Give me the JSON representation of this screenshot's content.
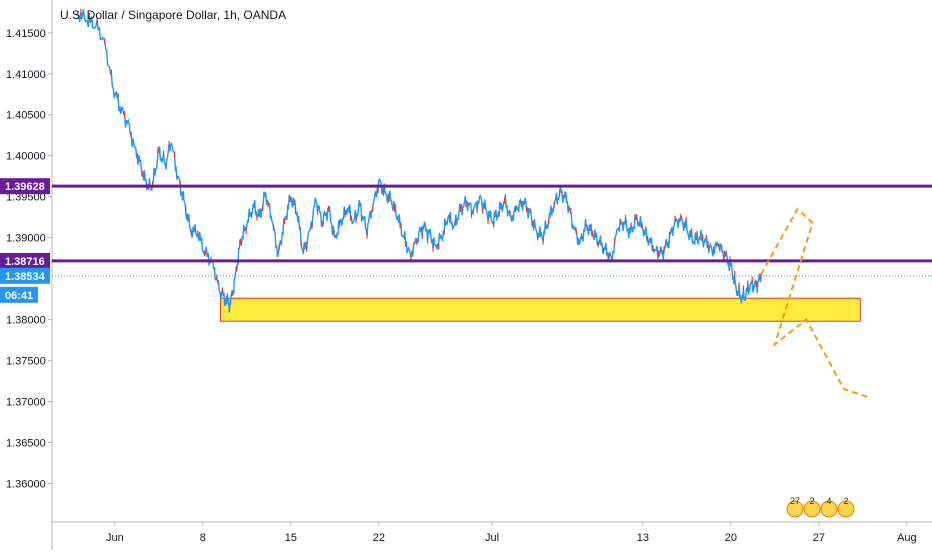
{
  "header": {
    "title": "U.S. Dollar / Singapore Dollar, 1h, OANDA"
  },
  "price_tags": {
    "res_upper": {
      "label": "1.39628",
      "color": "#6a1b9a"
    },
    "res_lower": {
      "label": "1.38716",
      "color": "#6a1b9a"
    },
    "last": {
      "label": "1.38534",
      "color": "#2196f3"
    },
    "countdown": {
      "label": "06:41",
      "color": "#2196f3"
    }
  },
  "events": {
    "labels": [
      "27",
      "2",
      "4",
      "2"
    ]
  },
  "chart_data": {
    "type": "candlestick",
    "title": "U.S. Dollar / Singapore Dollar, 1h, OANDA",
    "xlabel": "",
    "ylabel": "",
    "ylim": [
      1.3553,
      1.419
    ],
    "y_ticks": [
      1.415,
      1.41,
      1.405,
      1.4,
      1.395,
      1.39,
      1.38,
      1.375,
      1.37,
      1.365,
      1.36
    ],
    "y_tick_labels": [
      "1.41500",
      "1.41000",
      "1.40500",
      "1.40000",
      "1.39500",
      "1.39000",
      "1.38000",
      "1.37500",
      "1.37000",
      "1.36500",
      "1.36000"
    ],
    "x_ticks": [
      {
        "label": "Jun",
        "x": 28
      },
      {
        "label": "8",
        "x": 35
      },
      {
        "label": "15",
        "x": 42
      },
      {
        "label": "22",
        "x": 49
      },
      {
        "label": "Jul",
        "x": 58
      },
      {
        "label": "13",
        "x": 70
      },
      {
        "label": "20",
        "x": 77
      },
      {
        "label": "27",
        "x": 84
      },
      {
        "label": "Aug",
        "x": 91
      }
    ],
    "xlim": [
      23,
      93
    ],
    "price_path": [
      [
        25.0,
        1.4175
      ],
      [
        25.8,
        1.4165
      ],
      [
        26.5,
        1.4158
      ],
      [
        27.2,
        1.414
      ],
      [
        27.8,
        1.4085
      ],
      [
        28.4,
        1.406
      ],
      [
        29.0,
        1.404
      ],
      [
        29.6,
        1.401
      ],
      [
        30.1,
        1.3985
      ],
      [
        30.6,
        1.396
      ],
      [
        31.0,
        1.3965
      ],
      [
        31.5,
        1.4005
      ],
      [
        32.0,
        1.399
      ],
      [
        32.5,
        1.4015
      ],
      [
        33.0,
        1.3975
      ],
      [
        33.5,
        1.3945
      ],
      [
        34.0,
        1.391
      ],
      [
        34.6,
        1.3905
      ],
      [
        35.2,
        1.388
      ],
      [
        35.8,
        1.387
      ],
      [
        36.3,
        1.3835
      ],
      [
        36.8,
        1.3825
      ],
      [
        37.2,
        1.3818
      ],
      [
        37.6,
        1.3855
      ],
      [
        38.0,
        1.3895
      ],
      [
        38.5,
        1.3915
      ],
      [
        39.0,
        1.394
      ],
      [
        39.5,
        1.3925
      ],
      [
        40.0,
        1.3955
      ],
      [
        40.5,
        1.392
      ],
      [
        41.0,
        1.388
      ],
      [
        41.5,
        1.392
      ],
      [
        42.0,
        1.395
      ],
      [
        42.5,
        1.393
      ],
      [
        43.0,
        1.388
      ],
      [
        43.5,
        1.391
      ],
      [
        44.0,
        1.3945
      ],
      [
        44.5,
        1.392
      ],
      [
        45.0,
        1.3935
      ],
      [
        45.5,
        1.39
      ],
      [
        46.0,
        1.392
      ],
      [
        46.5,
        1.3935
      ],
      [
        47.0,
        1.392
      ],
      [
        47.5,
        1.394
      ],
      [
        48.0,
        1.391
      ],
      [
        48.5,
        1.3935
      ],
      [
        49.0,
        1.397
      ],
      [
        49.5,
        1.3955
      ],
      [
        50.0,
        1.3945
      ],
      [
        50.5,
        1.3925
      ],
      [
        51.0,
        1.39
      ],
      [
        51.5,
        1.388
      ],
      [
        52.0,
        1.3895
      ],
      [
        52.5,
        1.3915
      ],
      [
        53.0,
        1.3905
      ],
      [
        53.5,
        1.389
      ],
      [
        54.0,
        1.39
      ],
      [
        54.5,
        1.3925
      ],
      [
        55.0,
        1.3915
      ],
      [
        55.5,
        1.3935
      ],
      [
        56.0,
        1.3945
      ],
      [
        56.5,
        1.393
      ],
      [
        57.0,
        1.395
      ],
      [
        57.5,
        1.3935
      ],
      [
        58.0,
        1.392
      ],
      [
        58.5,
        1.393
      ],
      [
        59.0,
        1.3945
      ],
      [
        59.5,
        1.3925
      ],
      [
        60.0,
        1.3935
      ],
      [
        60.5,
        1.3945
      ],
      [
        61.0,
        1.393
      ],
      [
        61.5,
        1.391
      ],
      [
        62.0,
        1.39
      ],
      [
        62.5,
        1.392
      ],
      [
        63.0,
        1.3945
      ],
      [
        63.5,
        1.3955
      ],
      [
        64.0,
        1.3945
      ],
      [
        64.5,
        1.391
      ],
      [
        65.0,
        1.3895
      ],
      [
        65.5,
        1.3915
      ],
      [
        66.0,
        1.3905
      ],
      [
        66.5,
        1.3895
      ],
      [
        67.0,
        1.3885
      ],
      [
        67.5,
        1.3875
      ],
      [
        68.0,
        1.391
      ],
      [
        68.5,
        1.392
      ],
      [
        69.0,
        1.3905
      ],
      [
        69.5,
        1.3925
      ],
      [
        70.0,
        1.391
      ],
      [
        70.5,
        1.3895
      ],
      [
        71.0,
        1.3885
      ],
      [
        71.5,
        1.388
      ],
      [
        72.0,
        1.3895
      ],
      [
        72.5,
        1.3915
      ],
      [
        73.0,
        1.3925
      ],
      [
        73.5,
        1.391
      ],
      [
        74.0,
        1.3895
      ],
      [
        74.5,
        1.39
      ],
      [
        75.0,
        1.3895
      ],
      [
        75.5,
        1.3885
      ],
      [
        76.0,
        1.389
      ],
      [
        76.5,
        1.388
      ],
      [
        77.0,
        1.3865
      ],
      [
        77.4,
        1.384
      ],
      [
        77.8,
        1.3825
      ],
      [
        78.2,
        1.383
      ],
      [
        78.6,
        1.3845
      ],
      [
        79.0,
        1.384
      ],
      [
        79.4,
        1.3853
      ]
    ],
    "horizontal_levels": [
      {
        "value": 1.39628,
        "color": "#6a1b9a"
      },
      {
        "value": 1.38716,
        "color": "#6a1b9a"
      }
    ],
    "zone": {
      "x_start": 36.4,
      "x_end": 87.3,
      "y_top": 1.3826,
      "y_bottom": 1.3798,
      "fill": "#ffeb3b",
      "border": "#e53935"
    },
    "projection_path": [
      [
        79.4,
        1.3855
      ],
      [
        82.3,
        1.3935
      ],
      [
        83.5,
        1.3918
      ],
      [
        80.5,
        1.377
      ],
      [
        83.0,
        1.38
      ],
      [
        86.0,
        1.3715
      ],
      [
        88.0,
        1.3705
      ]
    ],
    "grid": false,
    "colors": {
      "line": "#2196f3",
      "bear": "#e53935",
      "projection": "#f39c12"
    }
  }
}
